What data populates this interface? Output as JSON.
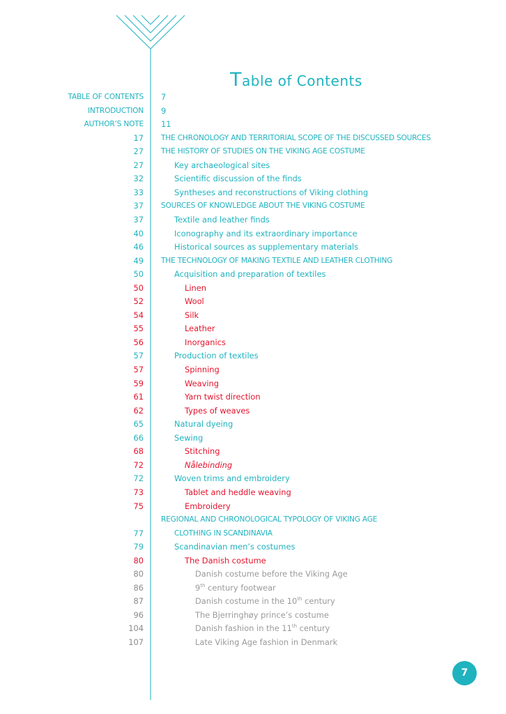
{
  "title": {
    "first": "T",
    "rest": "able of Contents"
  },
  "page_number": "7",
  "colors": {
    "teal": "#1fb3bf",
    "red": "#e3132c",
    "gray": "#9a9a9a"
  },
  "front_matter": [
    {
      "label": "TABLE OF CONTENTS",
      "page": "7"
    },
    {
      "label": "INTRODUCTION",
      "page": "9"
    },
    {
      "label": "AUTHOR’S NOTE",
      "page": "11"
    }
  ],
  "entries": [
    {
      "page": "17",
      "text": "THE CHRONOLOGY AND TERRITORIAL SCOPE OF THE DISCUSSED SOURCES",
      "level": 0,
      "color": "teal"
    },
    {
      "page": "27",
      "text": "THE HISTORY OF STUDIES ON THE VIKING AGE COSTUME",
      "level": 0,
      "color": "teal"
    },
    {
      "page": "27",
      "text": "Key archaeological sites",
      "level": 1,
      "color": "teal"
    },
    {
      "page": "32",
      "text": "Scientific discussion of the finds",
      "level": 1,
      "color": "teal"
    },
    {
      "page": "33",
      "text": "Syntheses and reconstructions of Viking clothing",
      "level": 1,
      "color": "teal"
    },
    {
      "page": "37",
      "text": "SOURCES OF KNOWLEDGE ABOUT THE VIKING COSTUME",
      "level": 0,
      "color": "teal"
    },
    {
      "page": "37",
      "text": "Textile and leather finds",
      "level": 1,
      "color": "teal"
    },
    {
      "page": "40",
      "text": "Iconography and its extraordinary importance",
      "level": 1,
      "color": "teal"
    },
    {
      "page": "46",
      "text": "Historical sources as supplementary materials",
      "level": 1,
      "color": "teal"
    },
    {
      "page": "49",
      "text": "THE TECHNOLOGY OF MAKING TEXTILE AND LEATHER CLOTHING",
      "level": 0,
      "color": "teal"
    },
    {
      "page": "50",
      "text": "Acquisition and preparation of textiles",
      "level": 1,
      "color": "teal"
    },
    {
      "page": "50",
      "text": "Linen",
      "level": 2,
      "color": "red"
    },
    {
      "page": "52",
      "text": "Wool",
      "level": 2,
      "color": "red"
    },
    {
      "page": "54",
      "text": "Silk",
      "level": 2,
      "color": "red"
    },
    {
      "page": "55",
      "text": "Leather",
      "level": 2,
      "color": "red"
    },
    {
      "page": "56",
      "text": "Inorganics",
      "level": 2,
      "color": "red"
    },
    {
      "page": "57",
      "text": "Production of textiles",
      "level": 1,
      "color": "teal"
    },
    {
      "page": "57",
      "text": "Spinning",
      "level": 2,
      "color": "red"
    },
    {
      "page": "59",
      "text": "Weaving",
      "level": 2,
      "color": "red"
    },
    {
      "page": "61",
      "text": "Yarn twist direction",
      "level": 2,
      "color": "red"
    },
    {
      "page": "62",
      "text": "Types of weaves",
      "level": 2,
      "color": "red"
    },
    {
      "page": "65",
      "text": "Natural dyeing",
      "level": 1,
      "color": "teal"
    },
    {
      "page": "66",
      "text": "Sewing",
      "level": 1,
      "color": "teal"
    },
    {
      "page": "68",
      "text": "Stitching",
      "level": 2,
      "color": "red"
    },
    {
      "page": "72",
      "text": "Nålebinding",
      "level": 2,
      "color": "red",
      "italic": true
    },
    {
      "page": "72",
      "text": "Woven trims and embroidery",
      "level": 1,
      "color": "teal"
    },
    {
      "page": "73",
      "text": "Tablet and heddle weaving",
      "level": 2,
      "color": "red"
    },
    {
      "page": "75",
      "text": "Embroidery",
      "level": 2,
      "color": "red"
    },
    {
      "page": "",
      "text": "REGIONAL AND CHRONOLOGICAL TYPOLOGY OF VIKING AGE",
      "level": 0,
      "color": "teal"
    },
    {
      "page": "77",
      "text": "CLOTHING IN SCANDINAVIA",
      "level": 1,
      "color": "teal"
    },
    {
      "page": "79",
      "text": "Scandinavian men’s costumes",
      "level": 1,
      "color": "teal"
    },
    {
      "page": "80",
      "text": "The Danish costume",
      "level": 2,
      "color": "red"
    },
    {
      "page": "80",
      "text": "Danish costume before the Viking Age",
      "level": 3,
      "color": "gray"
    },
    {
      "page": "86",
      "text": "9",
      "sup": "th",
      "post": " century footwear",
      "level": 3,
      "color": "gray"
    },
    {
      "page": "87",
      "text": "Danish costume in the 10",
      "sup": "th",
      "post": " century",
      "level": 3,
      "color": "gray"
    },
    {
      "page": "96",
      "text": "The Bjerringhøy prince’s costume",
      "level": 3,
      "color": "gray"
    },
    {
      "page": "104",
      "text": "Danish fashion in the 11",
      "sup": "th",
      "post": " century",
      "level": 3,
      "color": "gray"
    },
    {
      "page": "107",
      "text": "Late Viking Age fashion in Denmark",
      "level": 3,
      "color": "gray"
    }
  ]
}
